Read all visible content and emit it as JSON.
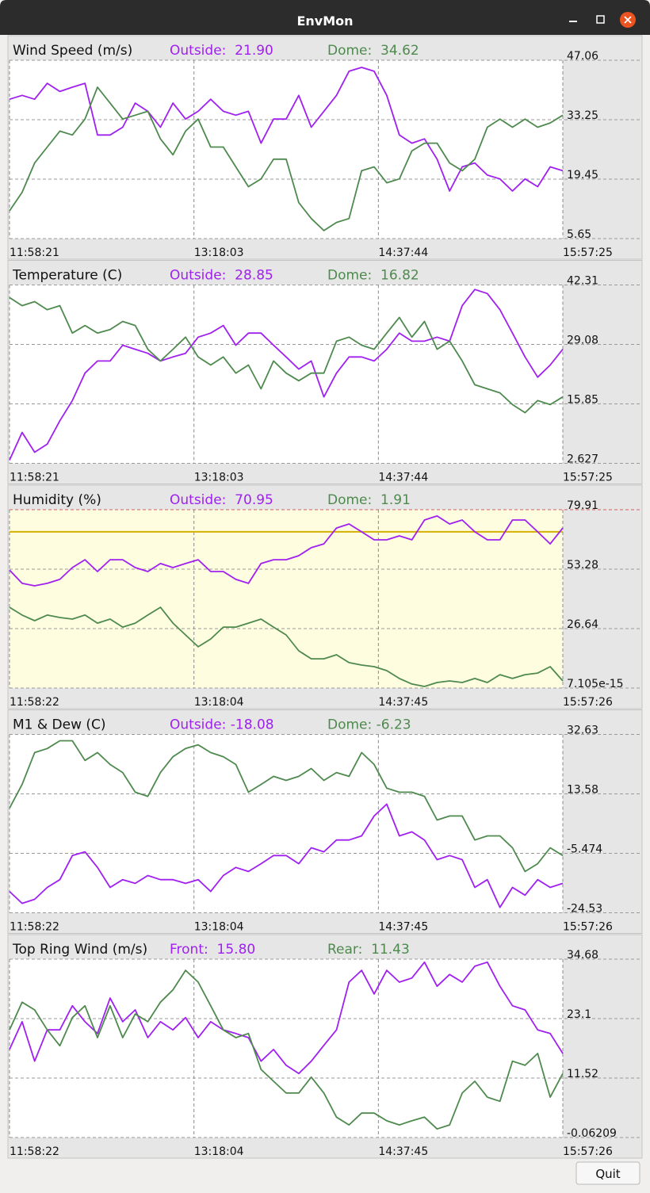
{
  "window_title": "EnvMon",
  "quit_button": "Quit",
  "chart_data": [
    {
      "type": "line",
      "title": "Wind Speed (m/s)",
      "xlim": [
        43101,
        57445
      ],
      "xticks": [
        {
          "value": 43101,
          "label": "11:58:21"
        },
        {
          "value": 47883,
          "label": "13:18:03"
        },
        {
          "value": 52664,
          "label": "14:37:44"
        },
        {
          "value": 57445,
          "label": "15:57:25"
        }
      ],
      "ylim": [
        5.65,
        47.06
      ],
      "yticks": [
        5.65,
        19.45,
        33.25,
        47.06
      ],
      "grid": true,
      "x": [
        43101,
        43427,
        43753,
        44079,
        44405,
        44731,
        45057,
        45383,
        45709,
        46035,
        46361,
        46687,
        47013,
        47339,
        47665,
        47991,
        48317,
        48643,
        48969,
        49295,
        49621,
        49947,
        50273,
        50599,
        50925,
        51251,
        51577,
        51903,
        52229,
        52555,
        52881,
        53207,
        53533,
        53859,
        54185,
        54511,
        54837,
        55163,
        55489,
        55815,
        56141,
        56467,
        56793,
        57119,
        57445
      ],
      "series": [
        {
          "name": "Outside:  21.90",
          "color": "#a020f0",
          "values": [
            38.0,
            38.9,
            38.0,
            41.7,
            39.8,
            40.8,
            41.7,
            29.7,
            29.7,
            31.5,
            37.1,
            35.2,
            31.5,
            37.1,
            33.4,
            35.2,
            38.0,
            35.2,
            34.3,
            35.2,
            27.8,
            33.4,
            33.4,
            38.9,
            31.5,
            35.2,
            38.9,
            44.5,
            45.4,
            44.5,
            38.9,
            29.7,
            27.8,
            28.8,
            24.1,
            16.7,
            22.3,
            23.2,
            20.4,
            19.5,
            16.7,
            19.5,
            17.7,
            22.3,
            21.4
          ]
        },
        {
          "name": "Dome:  34.62",
          "color": "#4e8a4e",
          "values": [
            12.1,
            16.4,
            23.2,
            26.9,
            30.6,
            29.7,
            33.4,
            40.8,
            37.1,
            33.4,
            34.3,
            35.2,
            28.8,
            25.1,
            30.6,
            33.4,
            26.9,
            26.9,
            22.3,
            17.7,
            19.5,
            24.1,
            24.1,
            14.0,
            10.3,
            7.5,
            9.4,
            10.3,
            21.4,
            22.3,
            18.6,
            19.5,
            26.0,
            27.8,
            27.8,
            23.2,
            21.4,
            24.1,
            31.5,
            33.4,
            31.5,
            33.4,
            31.5,
            32.5,
            34.3
          ]
        }
      ]
    },
    {
      "type": "line",
      "title": "Temperature (C)",
      "xlim": [
        43101,
        57445
      ],
      "xticks": [
        {
          "value": 43101,
          "label": "11:58:21"
        },
        {
          "value": 47883,
          "label": "13:18:03"
        },
        {
          "value": 52664,
          "label": "14:37:44"
        },
        {
          "value": 57445,
          "label": "15:57:25"
        }
      ],
      "ylim": [
        2.627,
        42.31
      ],
      "yticks": [
        2.627,
        15.85,
        29.08,
        42.31
      ],
      "grid": true,
      "x": [
        43101,
        43427,
        43753,
        44079,
        44405,
        44731,
        45057,
        45383,
        45709,
        46035,
        46361,
        46687,
        47013,
        47339,
        47665,
        47991,
        48317,
        48643,
        48969,
        49295,
        49621,
        49947,
        50273,
        50599,
        50925,
        51251,
        51577,
        51903,
        52229,
        52555,
        52881,
        53207,
        53533,
        53859,
        54185,
        54511,
        54837,
        55163,
        55489,
        55815,
        56141,
        56467,
        56793,
        57119,
        57445
      ],
      "series": [
        {
          "name": "Outside:  28.85",
          "color": "#a020f0",
          "values": [
            3.33,
            9.5,
            5.1,
            6.9,
            12.1,
            16.6,
            22.7,
            25.4,
            25.4,
            28.9,
            28.0,
            27.1,
            25.4,
            26.3,
            27.1,
            30.7,
            31.6,
            33.3,
            28.9,
            31.6,
            31.6,
            28.9,
            26.3,
            23.6,
            25.4,
            17.4,
            22.7,
            26.3,
            26.3,
            25.4,
            28.0,
            31.6,
            29.8,
            29.8,
            30.7,
            29.8,
            37.7,
            41.3,
            40.4,
            36.8,
            31.6,
            26.3,
            21.8,
            24.5,
            28.0
          ]
        },
        {
          "name": "Dome:  16.82",
          "color": "#4e8a4e",
          "values": [
            39.5,
            37.7,
            38.6,
            36.8,
            37.7,
            31.6,
            33.3,
            31.6,
            32.4,
            34.2,
            33.3,
            28.0,
            25.4,
            28.0,
            30.7,
            26.3,
            24.5,
            26.3,
            22.7,
            24.5,
            19.2,
            25.4,
            22.7,
            21.0,
            22.7,
            22.7,
            29.8,
            30.7,
            28.9,
            28.0,
            31.6,
            35.1,
            30.7,
            34.2,
            28.0,
            29.8,
            25.4,
            20.1,
            19.2,
            18.3,
            15.7,
            13.9,
            16.6,
            15.7,
            17.4
          ]
        }
      ]
    },
    {
      "type": "line",
      "title": "Humidity (%)",
      "background": "#fffde0",
      "threshold": 70,
      "threshold_color": "#d4b000",
      "top_grid_color": "#d06060",
      "xlim": [
        43102,
        57446
      ],
      "xticks": [
        {
          "value": 43102,
          "label": "11:58:22"
        },
        {
          "value": 47884,
          "label": "13:18:04"
        },
        {
          "value": 52665,
          "label": "14:37:45"
        },
        {
          "value": 57446,
          "label": "15:57:26"
        }
      ],
      "ylim": [
        7.105e-15,
        79.91
      ],
      "yticks": [
        7.105e-15,
        26.64,
        53.28,
        79.91
      ],
      "grid": true,
      "x": [
        43102,
        43428,
        43754,
        44080,
        44406,
        44732,
        45058,
        45384,
        45710,
        46036,
        46362,
        46688,
        47014,
        47340,
        47666,
        47992,
        48318,
        48644,
        48970,
        49296,
        49622,
        49948,
        50274,
        50600,
        50926,
        51252,
        51578,
        51904,
        52230,
        52556,
        52882,
        53208,
        53534,
        53860,
        54186,
        54512,
        54838,
        55164,
        55490,
        55816,
        56142,
        56468,
        56794,
        57120,
        57446
      ],
      "series": [
        {
          "name": "Outside:  70.95",
          "color": "#a020f0",
          "values": [
            52.9,
            46.9,
            45.8,
            46.9,
            48.7,
            54.0,
            57.5,
            52.2,
            57.5,
            57.5,
            54.0,
            52.2,
            55.8,
            54.0,
            55.8,
            57.5,
            52.2,
            52.2,
            48.7,
            46.9,
            55.8,
            57.5,
            57.5,
            59.3,
            62.9,
            64.6,
            71.7,
            73.5,
            70.0,
            66.4,
            66.4,
            68.2,
            66.4,
            75.3,
            77.1,
            73.5,
            75.3,
            70.0,
            66.4,
            66.4,
            75.3,
            75.3,
            70.0,
            64.6,
            71.7
          ]
        },
        {
          "name": "Dome:  1.91",
          "color": "#4e8a4e",
          "values": [
            36.2,
            32.7,
            30.2,
            32.7,
            31.6,
            30.9,
            32.7,
            29.1,
            30.9,
            27.3,
            29.1,
            32.7,
            36.2,
            29.1,
            23.8,
            18.5,
            22.0,
            27.3,
            27.3,
            29.1,
            30.9,
            27.3,
            23.8,
            16.7,
            13.1,
            13.1,
            14.9,
            11.4,
            10.3,
            9.6,
            7.8,
            4.3,
            1.8,
            0.7,
            2.5,
            3.2,
            2.5,
            4.3,
            2.5,
            6.0,
            4.3,
            6.0,
            6.7,
            9.6,
            3.2
          ]
        }
      ]
    },
    {
      "type": "line",
      "title": "M1 & Dew (C)",
      "xlim": [
        43102,
        57446
      ],
      "xticks": [
        {
          "value": 43102,
          "label": "11:58:22"
        },
        {
          "value": 47884,
          "label": "13:18:04"
        },
        {
          "value": 52665,
          "label": "14:37:45"
        },
        {
          "value": 57446,
          "label": "15:57:26"
        }
      ],
      "ylim": [
        -24.53,
        32.63
      ],
      "yticks": [
        -24.53,
        -5.474,
        13.58,
        32.63
      ],
      "grid": true,
      "x": [
        43102,
        43428,
        43754,
        44080,
        44406,
        44732,
        45058,
        45384,
        45710,
        46036,
        46362,
        46688,
        47014,
        47340,
        47666,
        47992,
        48318,
        48644,
        48970,
        49296,
        49622,
        49948,
        50274,
        50600,
        50926,
        51252,
        51578,
        51904,
        52230,
        52556,
        52882,
        53208,
        53534,
        53860,
        54186,
        54512,
        54838,
        55164,
        55490,
        55816,
        56142,
        56468,
        56794,
        57120,
        57446
      ],
      "series": [
        {
          "name": "Outside: -18.08",
          "color": "#a020f0",
          "values": [
            -17.7,
            -21.5,
            -20.2,
            -16.4,
            -13.9,
            -6.2,
            -5.0,
            -10.0,
            -16.4,
            -13.9,
            -15.1,
            -12.6,
            -13.9,
            -13.9,
            -15.1,
            -13.9,
            -17.7,
            -12.6,
            -10.0,
            -11.3,
            -8.8,
            -6.2,
            -6.2,
            -8.8,
            -3.7,
            -5.0,
            -1.2,
            -1.2,
            0.1,
            6.5,
            10.3,
            0.1,
            1.4,
            -1.2,
            -7.5,
            -6.2,
            -7.5,
            -16.4,
            -13.9,
            -22.8,
            -16.4,
            -18.9,
            -13.9,
            -16.4,
            -15.1
          ]
        },
        {
          "name": "Dome: -6.23",
          "color": "#4e8a4e",
          "values": [
            9.0,
            16.6,
            26.8,
            28.1,
            30.6,
            30.6,
            24.3,
            26.8,
            23.0,
            20.4,
            14.1,
            12.8,
            20.4,
            25.5,
            28.1,
            29.3,
            26.8,
            25.5,
            23.0,
            14.1,
            16.6,
            19.2,
            17.9,
            19.2,
            21.7,
            17.9,
            20.4,
            19.2,
            26.8,
            23.0,
            15.4,
            14.1,
            14.1,
            12.8,
            5.2,
            6.5,
            6.5,
            -1.2,
            0.1,
            0.1,
            -3.7,
            -11.3,
            -8.8,
            -3.7,
            -6.2
          ]
        }
      ]
    },
    {
      "type": "line",
      "title": "Top Ring Wind (m/s)",
      "xlim": [
        43102,
        57446
      ],
      "xticks": [
        {
          "value": 43102,
          "label": "11:58:22"
        },
        {
          "value": 47884,
          "label": "13:18:04"
        },
        {
          "value": 52665,
          "label": "14:37:45"
        },
        {
          "value": 57446,
          "label": "15:57:26"
        }
      ],
      "ylim": [
        -0.06209,
        34.68
      ],
      "yticks": [
        -0.06209,
        11.52,
        23.1,
        34.68
      ],
      "grid": true,
      "x": [
        43102,
        43428,
        43754,
        44080,
        44406,
        44732,
        45058,
        45384,
        45710,
        46036,
        46362,
        46688,
        47014,
        47340,
        47666,
        47992,
        48318,
        48644,
        48970,
        49296,
        49622,
        49948,
        50274,
        50600,
        50926,
        51252,
        51578,
        51904,
        52230,
        52556,
        52882,
        53208,
        53534,
        53860,
        54186,
        54512,
        54838,
        55164,
        55490,
        55816,
        56142,
        56468,
        56794,
        57120,
        57446
      ],
      "series": [
        {
          "name": "Front:  15.80",
          "color": "#a020f0",
          "values": [
            17.1,
            22.5,
            14.8,
            20.9,
            20.9,
            25.6,
            22.5,
            20.2,
            27.1,
            22.5,
            24.8,
            19.4,
            22.5,
            20.9,
            23.3,
            19.4,
            22.5,
            20.9,
            20.2,
            19.4,
            14.8,
            17.1,
            14.0,
            12.4,
            14.8,
            17.9,
            20.9,
            30.2,
            32.5,
            27.9,
            32.5,
            30.2,
            31.0,
            34.1,
            29.4,
            31.7,
            30.2,
            33.3,
            34.1,
            29.4,
            25.6,
            24.8,
            20.9,
            20.2,
            16.3
          ]
        },
        {
          "name": "Rear:  11.43",
          "color": "#4e8a4e",
          "values": [
            20.9,
            26.3,
            24.8,
            20.9,
            17.8,
            23.3,
            25.6,
            19.4,
            25.6,
            19.4,
            24.0,
            22.5,
            26.3,
            28.7,
            32.5,
            30.2,
            25.6,
            20.9,
            19.4,
            20.2,
            13.2,
            10.9,
            8.6,
            8.6,
            11.7,
            8.6,
            3.9,
            2.4,
            4.7,
            4.7,
            3.2,
            2.4,
            3.2,
            3.9,
            1.6,
            2.4,
            8.6,
            10.9,
            7.8,
            7.0,
            14.8,
            14.0,
            16.3,
            7.8,
            12.4
          ]
        }
      ]
    }
  ]
}
